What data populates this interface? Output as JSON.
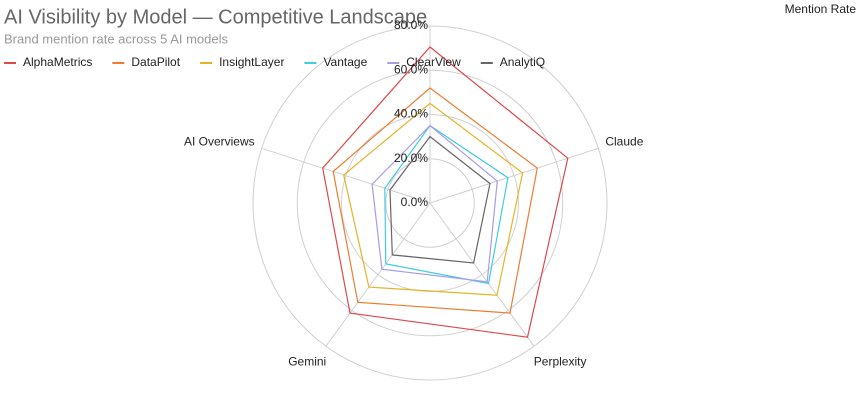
{
  "chart_data": {
    "type": "radar",
    "title": "AI Visibility by Model — Competitive Landscape",
    "subtitle": "Brand mention rate across 5 AI models",
    "axis_label": "Mention Rate",
    "categories": [
      null,
      "Claude",
      "Perplexity",
      "Gemini",
      "AI Overviews"
    ],
    "ylim": [
      0,
      80
    ],
    "yticks": [
      {
        "value": 0,
        "label": "0.0%"
      },
      {
        "value": 20,
        "label": "20.0%"
      },
      {
        "value": 40,
        "label": "40.0%"
      },
      {
        "value": 60,
        "label": "60.0%"
      },
      {
        "value": 80,
        "label": "80.0%"
      }
    ],
    "grid": true,
    "legend": "top",
    "series": [
      {
        "name": "AlphaMetrics",
        "color": "#e04848",
        "values": [
          70.5,
          65.5,
          75,
          61.5,
          51
        ]
      },
      {
        "name": "DataPilot",
        "color": "#ed7d31",
        "values": [
          52,
          51,
          61.5,
          55.5,
          46
        ]
      },
      {
        "name": "InsightLayer",
        "color": "#e6b428",
        "values": [
          45,
          44,
          51.5,
          47,
          41
        ]
      },
      {
        "name": "Vantage",
        "color": "#3ccfe0",
        "values": [
          35,
          37,
          45,
          34,
          21.5
        ]
      },
      {
        "name": "ClearView",
        "color": "#a99be8",
        "values": [
          35,
          32,
          44,
          37,
          27.5
        ]
      },
      {
        "name": "AnalytiQ",
        "color": "#666666",
        "values": [
          30,
          28.5,
          33.5,
          29,
          19
        ]
      }
    ]
  }
}
